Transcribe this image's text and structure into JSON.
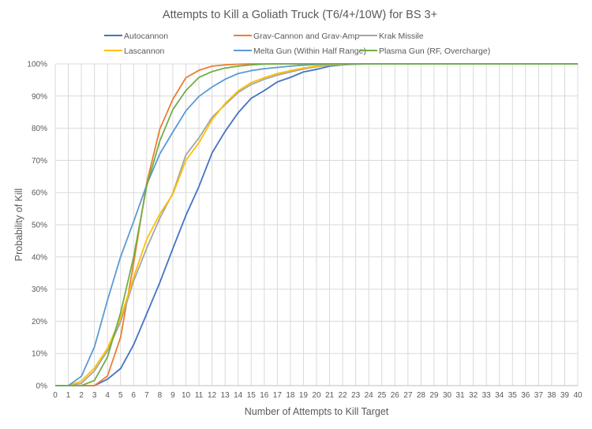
{
  "chart_data": {
    "type": "line",
    "title": "Attempts to Kill a Goliath Truck (T6/4+/10W) for BS 3+",
    "xlabel": "Number of Attempts to Kill Target",
    "ylabel": "Probability of Kill",
    "x": [
      0,
      1,
      2,
      3,
      4,
      5,
      6,
      7,
      8,
      9,
      10,
      11,
      12,
      13,
      14,
      15,
      16,
      17,
      18,
      19,
      20,
      21,
      22,
      23,
      24,
      25,
      26,
      27,
      28,
      29,
      30,
      31,
      32,
      33,
      34,
      35,
      36,
      37,
      38,
      39,
      40
    ],
    "xlim": [
      0,
      40
    ],
    "ylim": [
      0,
      100
    ],
    "y_ticks": [
      0,
      10,
      20,
      30,
      40,
      50,
      60,
      70,
      80,
      90,
      100
    ],
    "y_tick_labels": [
      "0%",
      "10%",
      "20%",
      "30%",
      "40%",
      "50%",
      "60%",
      "70%",
      "80%",
      "90%",
      "100%"
    ],
    "x_tick_labels": [
      "0",
      "1",
      "2",
      "3",
      "4",
      "5",
      "6",
      "7",
      "8",
      "9",
      "10",
      "11",
      "12",
      "13",
      "14",
      "15",
      "16",
      "17",
      "18",
      "19",
      "20",
      "21",
      "22",
      "23",
      "24",
      "25",
      "26",
      "27",
      "28",
      "29",
      "30",
      "31",
      "32",
      "33",
      "34",
      "35",
      "36",
      "37",
      "38",
      "39",
      "40"
    ],
    "grid": true,
    "legend_position": "top",
    "series": [
      {
        "name": "Autocannon",
        "color": "#4472c4",
        "values": [
          0,
          0,
          0,
          0,
          2,
          5.3,
          12.7,
          22.3,
          32,
          42.6,
          52.9,
          61.9,
          72.3,
          79,
          84.8,
          89.3,
          91.7,
          94.4,
          95.8,
          97.5,
          98.3,
          99.3,
          99.7,
          99.9,
          100,
          100,
          100,
          100,
          100,
          100,
          100,
          100,
          100,
          100,
          100,
          100,
          100,
          100,
          100,
          100,
          100
        ]
      },
      {
        "name": "Grav-Cannon and Grav-Amp",
        "color": "#ed7d31",
        "values": [
          0,
          0,
          0,
          0,
          3,
          15,
          38,
          63,
          79.7,
          89,
          95.7,
          98,
          99.3,
          99.7,
          99.9,
          100,
          100,
          100,
          100,
          100,
          100,
          100,
          100,
          100,
          100,
          100,
          100,
          100,
          100,
          100,
          100,
          100,
          100,
          100,
          100,
          100,
          100,
          100,
          100,
          100,
          100
        ]
      },
      {
        "name": "Krak Missile",
        "color": "#a5a5a5",
        "values": [
          0,
          0,
          0.7,
          4.6,
          10.8,
          19.8,
          32.5,
          42.7,
          52,
          59.8,
          71.7,
          77,
          83.4,
          87.3,
          91.1,
          93.6,
          95.2,
          96.5,
          97.5,
          98.4,
          99.1,
          99.6,
          99.8,
          99.9,
          100,
          100,
          100,
          100,
          100,
          100,
          100,
          100,
          100,
          100,
          100,
          100,
          100,
          100,
          100,
          100,
          100
        ]
      },
      {
        "name": "Lascannon",
        "color": "#ffc000",
        "values": [
          0,
          0,
          1.4,
          5.5,
          11.6,
          21,
          33.7,
          45.5,
          53.3,
          59.5,
          70,
          75.5,
          82.6,
          87.7,
          91.6,
          94.2,
          95.7,
          97,
          97.9,
          98.7,
          99.3,
          99.7,
          99.9,
          100,
          100,
          100,
          100,
          100,
          100,
          100,
          100,
          100,
          100,
          100,
          100,
          100,
          100,
          100,
          100,
          100,
          100
        ]
      },
      {
        "name": "Melta Gun (Within Half Range)",
        "color": "#5b9bd5",
        "values": [
          0,
          0,
          2.9,
          12,
          26.6,
          40,
          51,
          62.4,
          72,
          78.8,
          85.4,
          89.9,
          92.8,
          95.2,
          97,
          97.9,
          98.5,
          98.9,
          99.3,
          99.6,
          99.8,
          99.9,
          100,
          100,
          100,
          100,
          100,
          100,
          100,
          100,
          100,
          100,
          100,
          100,
          100,
          100,
          100,
          100,
          100,
          100,
          100
        ]
      },
      {
        "name": "Plasma Gun (RF, Overcharge)",
        "color": "#70ad47",
        "values": [
          0,
          0,
          0,
          1.6,
          8.9,
          22.6,
          40,
          62,
          76,
          85.8,
          91.7,
          95.8,
          97.6,
          98.7,
          99.3,
          99.7,
          99.9,
          100,
          100,
          100,
          100,
          100,
          100,
          100,
          100,
          100,
          100,
          100,
          100,
          100,
          100,
          100,
          100,
          100,
          100,
          100,
          100,
          100,
          100,
          100,
          100
        ]
      }
    ]
  }
}
